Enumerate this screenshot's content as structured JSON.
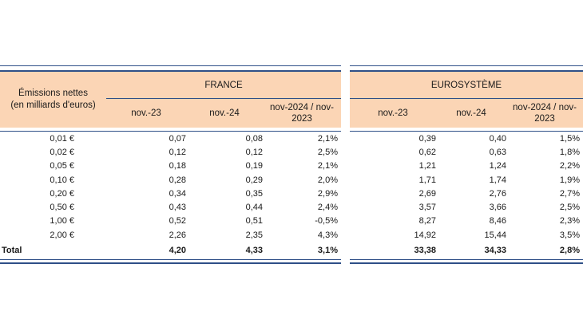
{
  "header": {
    "row_label": [
      "Émissions nettes",
      "(en milliards d'euros)"
    ],
    "france": "FRANCE",
    "eurosystem": "EUROSYSTÈME",
    "col1": "nov.-23",
    "col2": "nov.-24",
    "col3": [
      "nov-2024 / nov-",
      "2023"
    ]
  },
  "rows": [
    {
      "label": "0,01 €",
      "fr": [
        "0,07",
        "0,08",
        "2,1%"
      ],
      "eu": [
        "0,39",
        "0,40",
        "1,5%"
      ]
    },
    {
      "label": "0,02 €",
      "fr": [
        "0,12",
        "0,12",
        "2,5%"
      ],
      "eu": [
        "0,62",
        "0,63",
        "1,8%"
      ]
    },
    {
      "label": "0,05 €",
      "fr": [
        "0,18",
        "0,19",
        "2,1%"
      ],
      "eu": [
        "1,21",
        "1,24",
        "2,2%"
      ]
    },
    {
      "label": "0,10 €",
      "fr": [
        "0,28",
        "0,29",
        "2,0%"
      ],
      "eu": [
        "1,71",
        "1,74",
        "1,9%"
      ]
    },
    {
      "label": "0,20 €",
      "fr": [
        "0,34",
        "0,35",
        "2,9%"
      ],
      "eu": [
        "2,69",
        "2,76",
        "2,7%"
      ]
    },
    {
      "label": "0,50 €",
      "fr": [
        "0,43",
        "0,44",
        "2,4%"
      ],
      "eu": [
        "3,57",
        "3,66",
        "2,5%"
      ]
    },
    {
      "label": "1,00 €",
      "fr": [
        "0,52",
        "0,51",
        "-0,5%"
      ],
      "eu": [
        "8,27",
        "8,46",
        "2,3%"
      ]
    },
    {
      "label": "2,00 €",
      "fr": [
        "2,26",
        "2,35",
        "4,3%"
      ],
      "eu": [
        "14,92",
        "15,44",
        "3,5%"
      ]
    }
  ],
  "total": {
    "label": "Total",
    "fr": [
      "4,20",
      "4,33",
      "3,1%"
    ],
    "eu": [
      "33,38",
      "34,33",
      "2,8%"
    ]
  }
}
